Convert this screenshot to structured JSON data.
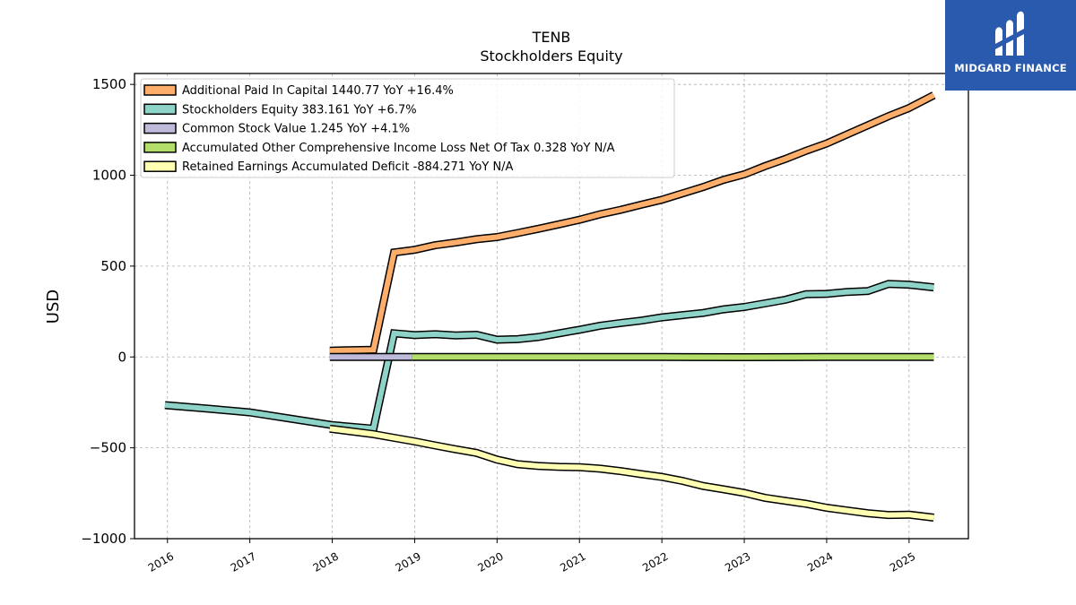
{
  "chart_data": {
    "type": "line",
    "title": "TENB",
    "subtitle": "Stockholders  Equity",
    "ylabel": "USD",
    "xlabel": "",
    "ylim": [
      -1000,
      1560
    ],
    "xlim": [
      2015.6,
      2025.72
    ],
    "yticks": [
      -1000,
      -500,
      0,
      500,
      1000,
      1500
    ],
    "ytick_labels": [
      "−1000",
      "−500",
      "0",
      "500",
      "1000",
      "1500"
    ],
    "xticks": [
      2016,
      2017,
      2018,
      2019,
      2020,
      2021,
      2022,
      2023,
      2024,
      2025
    ],
    "xtick_labels": [
      "2016",
      "2017",
      "2018",
      "2019",
      "2020",
      "2021",
      "2022",
      "2023",
      "2024",
      "2025"
    ],
    "grid": true,
    "legend_position": "top-left",
    "series": [
      {
        "name": "Additional Paid In Capital",
        "legend_label": "Additional Paid In Capital  1440.77 YoY +16.4%",
        "color": "#fdae6b",
        "points": [
          [
            2017.97,
            35
          ],
          [
            2018.5,
            40
          ],
          [
            2018.75,
            575
          ],
          [
            2019.0,
            590
          ],
          [
            2019.25,
            615
          ],
          [
            2019.5,
            630
          ],
          [
            2019.75,
            648
          ],
          [
            2020.0,
            660
          ],
          [
            2020.25,
            682
          ],
          [
            2020.5,
            705
          ],
          [
            2020.75,
            730
          ],
          [
            2021.0,
            755
          ],
          [
            2021.25,
            785
          ],
          [
            2021.5,
            810
          ],
          [
            2021.75,
            838
          ],
          [
            2022.0,
            865
          ],
          [
            2022.25,
            900
          ],
          [
            2022.5,
            935
          ],
          [
            2022.75,
            975
          ],
          [
            2023.0,
            1005
          ],
          [
            2023.25,
            1050
          ],
          [
            2023.5,
            1090
          ],
          [
            2023.75,
            1135
          ],
          [
            2024.0,
            1175
          ],
          [
            2024.25,
            1225
          ],
          [
            2024.5,
            1275
          ],
          [
            2024.75,
            1325
          ],
          [
            2025.0,
            1370
          ],
          [
            2025.3,
            1440.77
          ]
        ]
      },
      {
        "name": "Stockholders Equity",
        "legend_label": "Stockholders Equity  383.161 YoY +6.7%",
        "color": "#8dd3c7",
        "points": [
          [
            2015.97,
            -265
          ],
          [
            2016.5,
            -285
          ],
          [
            2017.0,
            -305
          ],
          [
            2017.5,
            -340
          ],
          [
            2018.0,
            -375
          ],
          [
            2018.5,
            -395
          ],
          [
            2018.75,
            130
          ],
          [
            2019.0,
            120
          ],
          [
            2019.25,
            125
          ],
          [
            2019.5,
            118
          ],
          [
            2019.75,
            122
          ],
          [
            2020.0,
            95
          ],
          [
            2020.25,
            98
          ],
          [
            2020.5,
            110
          ],
          [
            2020.75,
            130
          ],
          [
            2021.0,
            150
          ],
          [
            2021.25,
            172
          ],
          [
            2021.5,
            187
          ],
          [
            2021.75,
            200
          ],
          [
            2022.0,
            218
          ],
          [
            2022.25,
            230
          ],
          [
            2022.5,
            242
          ],
          [
            2022.75,
            262
          ],
          [
            2023.0,
            275
          ],
          [
            2023.25,
            295
          ],
          [
            2023.5,
            315
          ],
          [
            2023.75,
            345
          ],
          [
            2024.0,
            347
          ],
          [
            2024.25,
            358
          ],
          [
            2024.5,
            363
          ],
          [
            2024.75,
            402
          ],
          [
            2025.0,
            398
          ],
          [
            2025.3,
            383.161
          ]
        ]
      },
      {
        "name": "Common Stock Value",
        "legend_label": "Common Stock Value  1.245 YoY +4.1%",
        "color": "#bebada",
        "points": [
          [
            2017.97,
            0
          ],
          [
            2018.97,
            0
          ]
        ]
      },
      {
        "name": "Accumulated Other Comprehensive Income Loss Net Of Tax",
        "legend_label": "Accumulated Other Comprehensive Income Loss Net Of Tax  0.328 YoY N/A",
        "color": "#b3de69",
        "points": [
          [
            2018.97,
            0
          ],
          [
            2022.0,
            0
          ],
          [
            2023.0,
            -1
          ],
          [
            2024.0,
            0
          ],
          [
            2025.3,
            0
          ]
        ]
      },
      {
        "name": "Retained Earnings Accumulated Deficit",
        "legend_label": "Retained Earnings Accumulated Deficit  -884.271 YoY N/A",
        "color": "#ffffb3",
        "points": [
          [
            2017.97,
            -395
          ],
          [
            2018.5,
            -425
          ],
          [
            2018.75,
            -445
          ],
          [
            2019.0,
            -465
          ],
          [
            2019.25,
            -487
          ],
          [
            2019.5,
            -508
          ],
          [
            2019.75,
            -528
          ],
          [
            2020.0,
            -565
          ],
          [
            2020.25,
            -590
          ],
          [
            2020.5,
            -600
          ],
          [
            2020.75,
            -605
          ],
          [
            2021.0,
            -607
          ],
          [
            2021.25,
            -615
          ],
          [
            2021.5,
            -628
          ],
          [
            2021.75,
            -645
          ],
          [
            2022.0,
            -660
          ],
          [
            2022.25,
            -682
          ],
          [
            2022.5,
            -710
          ],
          [
            2022.75,
            -728
          ],
          [
            2023.0,
            -748
          ],
          [
            2023.25,
            -775
          ],
          [
            2023.5,
            -792
          ],
          [
            2023.75,
            -808
          ],
          [
            2024.0,
            -830
          ],
          [
            2024.25,
            -845
          ],
          [
            2024.5,
            -860
          ],
          [
            2024.75,
            -870
          ],
          [
            2025.0,
            -868
          ],
          [
            2025.3,
            -884.271
          ]
        ]
      }
    ]
  },
  "brand": {
    "name": "MIDGARD FINANCE",
    "icon": "midgard-logo-icon",
    "background": "#2a5aae"
  }
}
